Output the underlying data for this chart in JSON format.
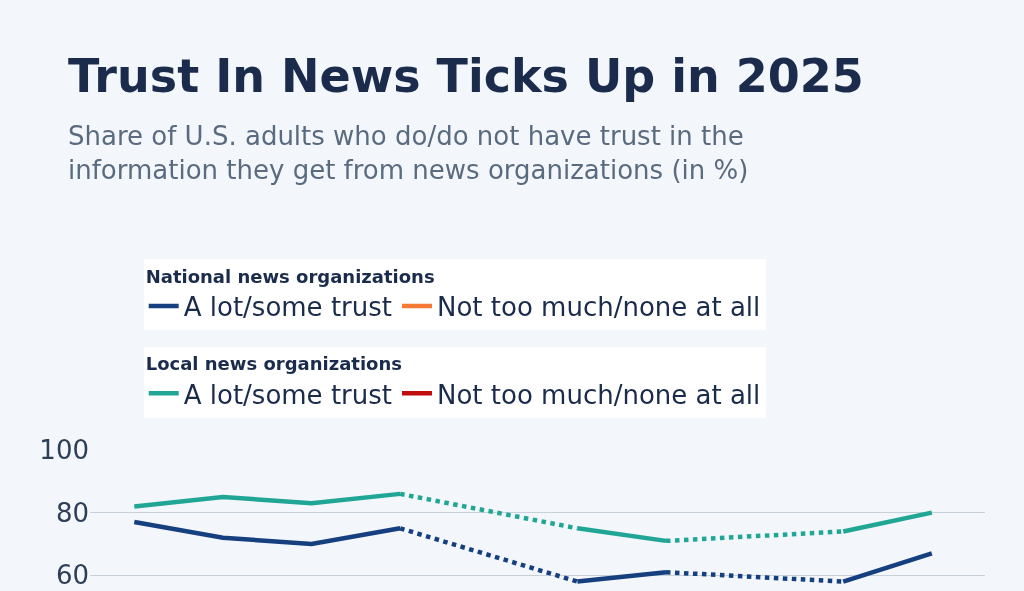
{
  "chart_data": {
    "type": "line",
    "title": "Trust In News Ticks Up in 2025",
    "subtitle": "Share of U.S. adults who do/do not have trust in the information they get from news organizations (in %)",
    "annotations": [
      "National news organizations",
      "Local news organizations"
    ],
    "categories": [
      null,
      null,
      null,
      null,
      null,
      null,
      null,
      null,
      null,
      null
    ],
    "series": [
      {
        "name": "A lot/some trust",
        "color": "#153f7f",
        "values": [
          77,
          72,
          70,
          75,
          null,
          58,
          61,
          null,
          58,
          67
        ]
      },
      {
        "name": "Not too much/none at all",
        "color": "#f47a36",
        "values": [
          null,
          null,
          null,
          null,
          null,
          null,
          null,
          null,
          null,
          null
        ]
      },
      {
        "name": "A lot/some trust",
        "color": "#21a696",
        "values": [
          82,
          85,
          83,
          86,
          null,
          75,
          71,
          null,
          74,
          80
        ]
      },
      {
        "name": "Not too much/none at all",
        "color": "#c00d0d",
        "values": [
          null,
          null,
          null,
          null,
          null,
          null,
          null,
          null,
          null,
          null
        ]
      }
    ],
    "ylim": [
      55,
      100
    ],
    "yticks": [
      60,
      80,
      100
    ],
    "grid": "y",
    "legend": "top",
    "tick_labels": "y",
    "marker": "none",
    "line_style": "solid"
  }
}
